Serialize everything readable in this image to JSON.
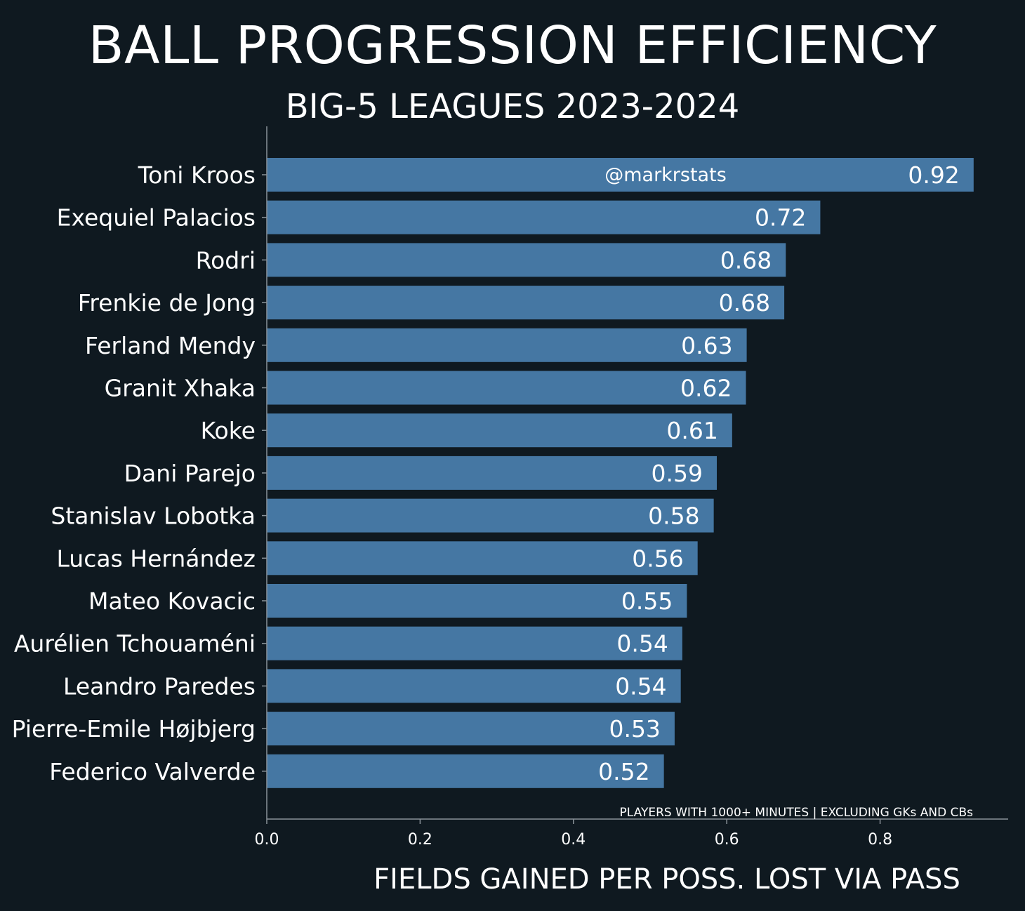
{
  "chart_data": {
    "type": "bar",
    "orientation": "horizontal",
    "title": "BALL PROGRESSION EFFICIENCY",
    "subtitle": "BIG-5 LEAGUES 2023-2024",
    "xlabel": "FIELDS GAINED PER POSS. LOST VIA PASS",
    "xlim": [
      0,
      0.97
    ],
    "xticks": [
      "0.0",
      "0.2",
      "0.4",
      "0.6",
      "0.8"
    ],
    "categories": [
      "Toni Kroos",
      "Exequiel Palacios",
      "Rodri",
      "Frenkie de Jong",
      "Ferland Mendy",
      "Granit Xhaka",
      "Koke",
      "Dani Parejo",
      "Stanislav Lobotka",
      "Lucas Hernández",
      "Mateo Kovacic",
      "Aurélien Tchouaméni",
      "Leandro Paredes",
      "Pierre-Emile Højbjerg",
      "Federico Valverde"
    ],
    "values": [
      0.922,
      0.722,
      0.677,
      0.675,
      0.626,
      0.625,
      0.607,
      0.587,
      0.583,
      0.562,
      0.548,
      0.542,
      0.54,
      0.532,
      0.518
    ],
    "value_labels": [
      "0.92",
      "0.72",
      "0.68",
      "0.68",
      "0.63",
      "0.62",
      "0.61",
      "0.59",
      "0.58",
      "0.56",
      "0.55",
      "0.54",
      "0.54",
      "0.53",
      "0.52"
    ],
    "watermark": "@markrstats",
    "note": "PLAYERS WITH 1000+ MINUTES | EXCLUDING GKs AND CBs",
    "bar_color": "#4577a3",
    "background_color": "#0f1920",
    "axis_color": "#8a9299",
    "grid": false
  }
}
